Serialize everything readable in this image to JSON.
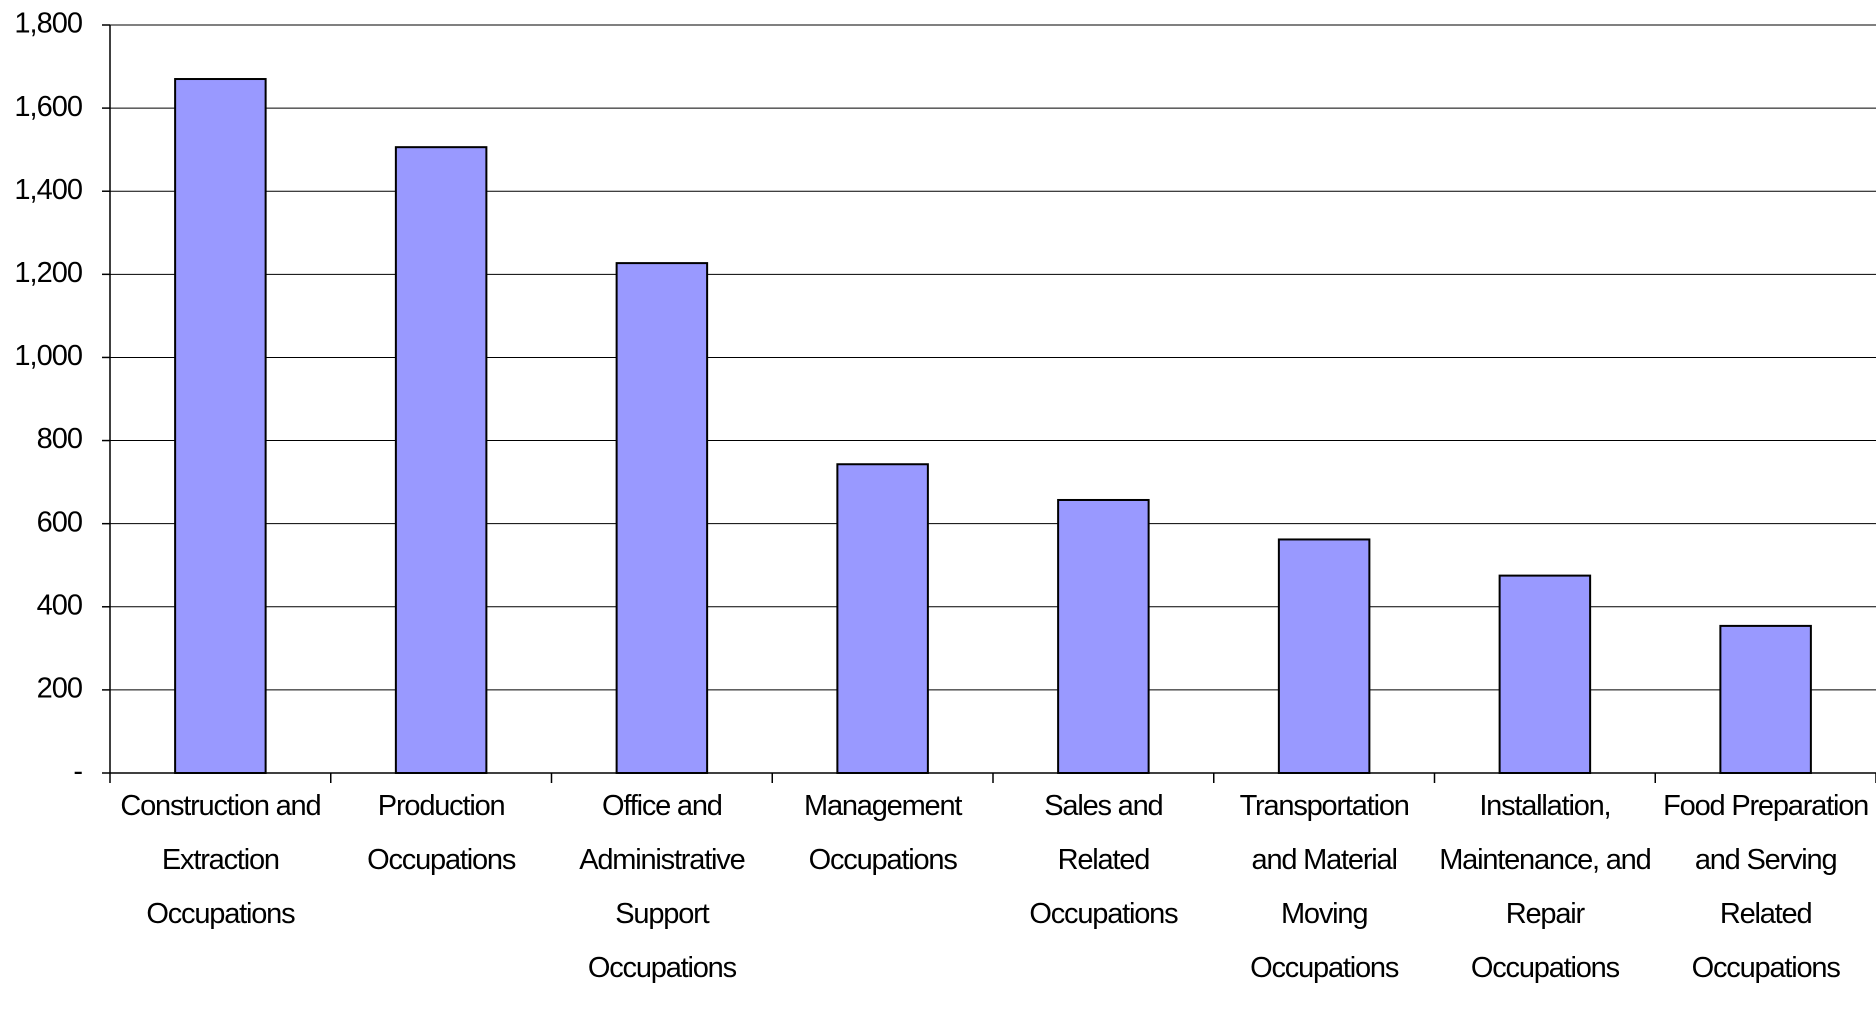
{
  "chart_data": {
    "type": "bar",
    "categories": [
      "Construction and Extraction Occupations",
      "Production Occupations",
      "Office and Administrative Support Occupations",
      "Management Occupations",
      "Sales and Related Occupations",
      "Transportation and Material Moving Occupations",
      "Installation, Maintenance, and Repair Occupations",
      "Food Preparation and Serving Related Occupations"
    ],
    "values": [
      1670,
      1506,
      1227,
      743,
      657,
      562,
      475,
      354
    ],
    "color": "#9999ff",
    "ylim": [
      0,
      1800
    ],
    "yticks": [
      {
        "value": 0,
        "label": "-"
      },
      200,
      400,
      600,
      800,
      {
        "value": 1000,
        "label": "1,000"
      },
      {
        "value": 1200,
        "label": "1,200"
      },
      {
        "value": 1400,
        "label": "1,400"
      },
      {
        "value": 1600,
        "label": "1,600"
      },
      {
        "value": 1800,
        "label": "1,800"
      }
    ],
    "grid": true
  }
}
